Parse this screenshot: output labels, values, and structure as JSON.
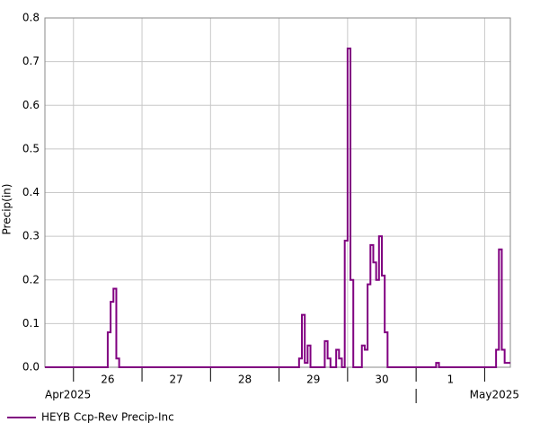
{
  "chart_data": {
    "type": "step",
    "y_label": "Precip(in)",
    "ylim": [
      0,
      0.8
    ],
    "yticks": [
      {
        "value": 0,
        "label": "0.0"
      },
      0.1,
      0.2,
      0.3,
      0.4,
      0.5,
      0.6,
      0.7,
      0.8
    ],
    "xlim": [
      "2025-04-25T14:00",
      "2025-05-02T09:00"
    ],
    "xticks": [
      "2025-04-26T00:00",
      "2025-04-27T00:00",
      "2025-04-28T00:00",
      "2025-04-29T00:00",
      "2025-04-30T00:00",
      "2025-05-01T00:00",
      "2025-05-02T00:00"
    ],
    "day_labels": [
      {
        "value": "2025-04-26T12:00",
        "label": "26"
      },
      {
        "value": "2025-04-27T12:00",
        "label": "27"
      },
      {
        "value": "2025-04-28T12:00",
        "label": "28"
      },
      {
        "value": "2025-04-29T12:00",
        "label": "29"
      },
      {
        "value": "2025-04-30T12:00",
        "label": "30"
      },
      {
        "value": "2025-05-01T12:00",
        "label": "1"
      }
    ],
    "month_labels": [
      {
        "value": "2025-04",
        "label": "Apr2025"
      },
      {
        "value": "2025-05",
        "label": "May2025"
      }
    ],
    "month_divider": "2025-05-01T00:00",
    "grid": true,
    "legend": "bottom-left",
    "series": [
      {
        "name": "HEYB Ccp-Rev Precip-Inc",
        "color": "#800080",
        "x": [
          "2025-04-25T14:00",
          "2025-04-26T12:00",
          "2025-04-26T13:00",
          "2025-04-26T14:00",
          "2025-04-26T15:00",
          "2025-04-26T16:00",
          "2025-04-29T07:00",
          "2025-04-29T08:00",
          "2025-04-29T09:00",
          "2025-04-29T10:00",
          "2025-04-29T11:00",
          "2025-04-29T16:00",
          "2025-04-29T17:00",
          "2025-04-29T18:00",
          "2025-04-29T20:00",
          "2025-04-29T21:00",
          "2025-04-29T22:00",
          "2025-04-29T23:00",
          "2025-04-30T00:00",
          "2025-04-30T01:00",
          "2025-04-30T02:00",
          "2025-04-30T05:00",
          "2025-04-30T06:00",
          "2025-04-30T07:00",
          "2025-04-30T08:00",
          "2025-04-30T09:00",
          "2025-04-30T10:00",
          "2025-04-30T11:00",
          "2025-04-30T12:00",
          "2025-04-30T13:00",
          "2025-04-30T14:00",
          "2025-05-01T07:00",
          "2025-05-01T08:00",
          "2025-05-02T04:00",
          "2025-05-02T05:00",
          "2025-05-02T06:00",
          "2025-05-02T07:00"
        ],
        "values": [
          0,
          0.08,
          0.15,
          0.18,
          0.02,
          0,
          0.02,
          0.12,
          0.01,
          0.05,
          0,
          0.06,
          0.02,
          0,
          0.04,
          0.02,
          0,
          0.29,
          0.73,
          0.2,
          0,
          0.05,
          0.04,
          0.19,
          0.28,
          0.24,
          0.2,
          0.3,
          0.21,
          0.08,
          0,
          0.01,
          0,
          0.04,
          0.27,
          0.04,
          0.01
        ]
      }
    ]
  }
}
